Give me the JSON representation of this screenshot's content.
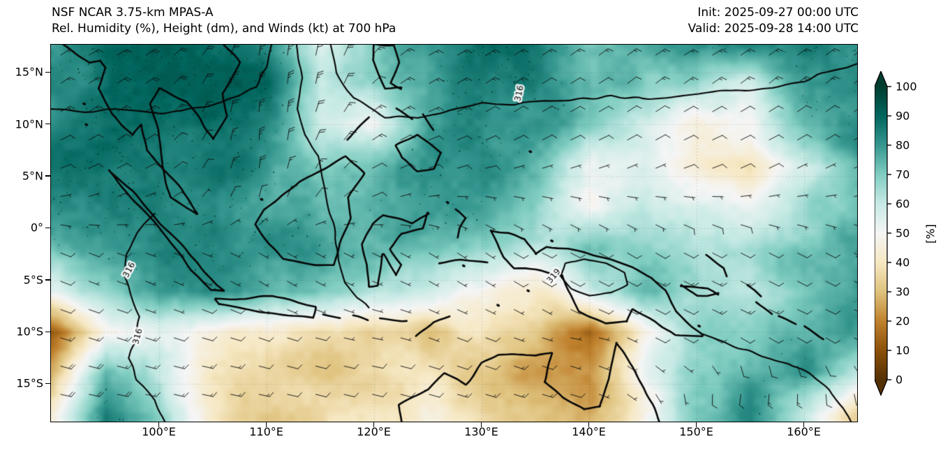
{
  "header": {
    "model_line": "NSF NCAR 3.75-km MPAS-A",
    "field_line": "Rel. Humidity (%), Height (dm), and Winds (kt) at 700 hPa",
    "init_line": "Init: 2025-09-27 00:00 UTC",
    "valid_line": "Valid: 2025-09-28 14:00 UTC"
  },
  "axes": {
    "lon_range": [
      89.9,
      164.9
    ],
    "lat_range": [
      -18.6,
      17.7
    ],
    "x_ticks": [
      {
        "label": "100°E",
        "lon": 100
      },
      {
        "label": "110°E",
        "lon": 110
      },
      {
        "label": "120°E",
        "lon": 120
      },
      {
        "label": "130°E",
        "lon": 130
      },
      {
        "label": "140°E",
        "lon": 140
      },
      {
        "label": "150°E",
        "lon": 150
      },
      {
        "label": "160°E",
        "lon": 160
      }
    ],
    "y_ticks": [
      {
        "label": "15°N",
        "lat": 15
      },
      {
        "label": "10°N",
        "lat": 10
      },
      {
        "label": "5°N",
        "lat": 5
      },
      {
        "label": "0°",
        "lat": 0
      },
      {
        "label": "5°S",
        "lat": -5
      },
      {
        "label": "10°S",
        "lat": -10
      },
      {
        "label": "15°S",
        "lat": -15
      }
    ]
  },
  "colorbar": {
    "label": "[%]",
    "ticks": [
      0,
      10,
      20,
      30,
      40,
      50,
      60,
      70,
      80,
      90,
      100
    ],
    "extend": "both",
    "cmap_name": "BrBG",
    "cmap_stops": [
      "#543005",
      "#8c510a",
      "#bf812d",
      "#dfc27d",
      "#f6e8c3",
      "#f5f5f5",
      "#c7eae5",
      "#80cdc1",
      "#35978f",
      "#01665e",
      "#003c30"
    ]
  },
  "chart_data": {
    "type": "heatmap",
    "title": "Rel. Humidity (%), Height (dm), and Winds (kt) at 700 hPa",
    "model": "NSF NCAR 3.75-km MPAS-A",
    "level": "700 hPa",
    "units": "%",
    "value_range": [
      0,
      100
    ],
    "lons": [
      90,
      95,
      100,
      105,
      110,
      115,
      120,
      125,
      130,
      135,
      140,
      145,
      150,
      155,
      160,
      165
    ],
    "lats": [
      18,
      14,
      10,
      6,
      2,
      -2,
      -6,
      -10,
      -14,
      -18
    ],
    "rh_values": [
      [
        88,
        92,
        92,
        88,
        80,
        55,
        70,
        78,
        85,
        80,
        70,
        75,
        82,
        88,
        85,
        82
      ],
      [
        85,
        90,
        93,
        92,
        85,
        55,
        65,
        75,
        82,
        80,
        75,
        70,
        65,
        55,
        80,
        82
      ],
      [
        82,
        88,
        92,
        90,
        80,
        55,
        50,
        75,
        80,
        78,
        72,
        55,
        40,
        45,
        70,
        78
      ],
      [
        85,
        88,
        90,
        88,
        78,
        65,
        72,
        78,
        80,
        70,
        48,
        55,
        40,
        35,
        55,
        72
      ],
      [
        80,
        85,
        88,
        85,
        75,
        70,
        75,
        80,
        75,
        65,
        50,
        60,
        55,
        50,
        60,
        70
      ],
      [
        75,
        80,
        85,
        80,
        78,
        75,
        72,
        70,
        65,
        60,
        68,
        65,
        60,
        65,
        70,
        75
      ],
      [
        60,
        70,
        78,
        80,
        72,
        68,
        62,
        55,
        50,
        40,
        55,
        70,
        65,
        60,
        70,
        75
      ],
      [
        15,
        50,
        55,
        45,
        40,
        35,
        35,
        30,
        40,
        35,
        15,
        45,
        65,
        70,
        75,
        78
      ],
      [
        30,
        75,
        60,
        40,
        35,
        30,
        35,
        40,
        35,
        28,
        25,
        55,
        70,
        75,
        80,
        60
      ],
      [
        45,
        85,
        70,
        40,
        30,
        35,
        40,
        45,
        40,
        35,
        30,
        50,
        70,
        80,
        60,
        35
      ]
    ],
    "wind_kt_uv": [
      [
        [
          -12,
          -8
        ],
        [
          -15,
          -8
        ],
        [
          -15,
          -10
        ],
        [
          -10,
          -15
        ],
        [
          -3,
          -25
        ],
        [
          -5,
          -20
        ],
        [
          -10,
          -12
        ],
        [
          -15,
          -8
        ],
        [
          -15,
          -8
        ],
        [
          -12,
          -8
        ],
        [
          -10,
          -8
        ],
        [
          -12,
          -8
        ],
        [
          -15,
          -8
        ],
        [
          -15,
          -10
        ],
        [
          -12,
          -8
        ],
        [
          -10,
          -8
        ]
      ],
      [
        [
          -12,
          -8
        ],
        [
          -15,
          -10
        ],
        [
          -15,
          -10
        ],
        [
          -8,
          -18
        ],
        [
          -2,
          -30
        ],
        [
          -5,
          -22
        ],
        [
          -12,
          -10
        ],
        [
          -15,
          -8
        ],
        [
          -12,
          -8
        ],
        [
          -10,
          -6
        ],
        [
          -10,
          -6
        ],
        [
          -10,
          -8
        ],
        [
          -12,
          -8
        ],
        [
          -10,
          -8
        ],
        [
          -10,
          -8
        ],
        [
          -10,
          -8
        ]
      ],
      [
        [
          -10,
          -5
        ],
        [
          -12,
          -8
        ],
        [
          -12,
          -8
        ],
        [
          -5,
          -15
        ],
        [
          0,
          -28
        ],
        [
          -8,
          -18
        ],
        [
          -12,
          -8
        ],
        [
          -12,
          -5
        ],
        [
          -10,
          -5
        ],
        [
          -8,
          -5
        ],
        [
          -8,
          -4
        ],
        [
          -8,
          -5
        ],
        [
          -10,
          -5
        ],
        [
          -10,
          -5
        ],
        [
          -8,
          -5
        ],
        [
          -8,
          -5
        ]
      ],
      [
        [
          -8,
          -3
        ],
        [
          -8,
          -4
        ],
        [
          -8,
          -4
        ],
        [
          -5,
          -10
        ],
        [
          -2,
          -20
        ],
        [
          -8,
          -12
        ],
        [
          -10,
          -5
        ],
        [
          -8,
          -3
        ],
        [
          -8,
          -2
        ],
        [
          -6,
          -2
        ],
        [
          -6,
          -2
        ],
        [
          -6,
          -3
        ],
        [
          -8,
          -3
        ],
        [
          -8,
          -4
        ],
        [
          -6,
          -3
        ],
        [
          -6,
          -3
        ]
      ],
      [
        [
          -5,
          0
        ],
        [
          -6,
          -2
        ],
        [
          -6,
          -2
        ],
        [
          -4,
          -5
        ],
        [
          -3,
          -8
        ],
        [
          -5,
          -5
        ],
        [
          -6,
          -2
        ],
        [
          -5,
          0
        ],
        [
          -5,
          2
        ],
        [
          -4,
          2
        ],
        [
          -4,
          2
        ],
        [
          -5,
          2
        ],
        [
          -6,
          2
        ],
        [
          -6,
          0
        ],
        [
          -5,
          0
        ],
        [
          -5,
          0
        ]
      ],
      [
        [
          -8,
          3
        ],
        [
          -8,
          3
        ],
        [
          -6,
          2
        ],
        [
          -5,
          2
        ],
        [
          -5,
          3
        ],
        [
          -6,
          3
        ],
        [
          -6,
          3
        ],
        [
          -5,
          3
        ],
        [
          -6,
          4
        ],
        [
          -8,
          4
        ],
        [
          -8,
          4
        ],
        [
          -8,
          5
        ],
        [
          -10,
          5
        ],
        [
          -10,
          5
        ],
        [
          -8,
          4
        ],
        [
          -8,
          4
        ]
      ],
      [
        [
          -10,
          4
        ],
        [
          -3,
          1
        ],
        [
          -2,
          1
        ],
        [
          -6,
          3
        ],
        [
          -5,
          3
        ],
        [
          -6,
          3
        ],
        [
          -3,
          1
        ],
        [
          -2,
          1
        ],
        [
          -5,
          3
        ],
        [
          -8,
          5
        ],
        [
          -10,
          5
        ],
        [
          -12,
          6
        ],
        [
          -12,
          6
        ],
        [
          -12,
          6
        ],
        [
          -10,
          5
        ],
        [
          -10,
          5
        ]
      ],
      [
        [
          -15,
          5
        ],
        [
          -15,
          5
        ],
        [
          -12,
          4
        ],
        [
          -10,
          3
        ],
        [
          -8,
          3
        ],
        [
          -8,
          2
        ],
        [
          -5,
          1
        ],
        [
          -5,
          2
        ],
        [
          -8,
          3
        ],
        [
          -3,
          1
        ],
        [
          -2,
          0
        ],
        [
          -8,
          4
        ],
        [
          -10,
          5
        ],
        [
          -12,
          5
        ],
        [
          -12,
          5
        ],
        [
          -10,
          5
        ]
      ],
      [
        [
          -18,
          5
        ],
        [
          -18,
          4
        ],
        [
          -15,
          4
        ],
        [
          -15,
          3
        ],
        [
          -12,
          3
        ],
        [
          -12,
          3
        ],
        [
          -10,
          2
        ],
        [
          -10,
          3
        ],
        [
          -12,
          4
        ],
        [
          -15,
          5
        ],
        [
          -3,
          1
        ],
        [
          -2,
          2
        ],
        [
          -3,
          3
        ],
        [
          0,
          12
        ],
        [
          -2,
          12
        ],
        [
          -5,
          10
        ]
      ],
      [
        [
          -18,
          3
        ],
        [
          -18,
          3
        ],
        [
          -15,
          3
        ],
        [
          -15,
          3
        ],
        [
          -12,
          2
        ],
        [
          -12,
          3
        ],
        [
          -12,
          3
        ],
        [
          -12,
          3
        ],
        [
          -15,
          4
        ],
        [
          -15,
          4
        ],
        [
          -10,
          3
        ],
        [
          -5,
          5
        ],
        [
          2,
          13
        ],
        [
          4,
          14
        ],
        [
          2,
          13
        ],
        [
          0,
          11
        ]
      ]
    ],
    "height_contour_labels": [
      {
        "text": "316",
        "lon": 97.2,
        "lat": -4.0,
        "rot": -62
      },
      {
        "text": "316",
        "lon": 98.0,
        "lat": -10.4,
        "rot": -75
      },
      {
        "text": "316",
        "lon": 133.5,
        "lat": 13.0,
        "rot": -78
      },
      {
        "text": "319",
        "lon": 136.7,
        "lat": -4.6,
        "rot": -50
      }
    ]
  }
}
